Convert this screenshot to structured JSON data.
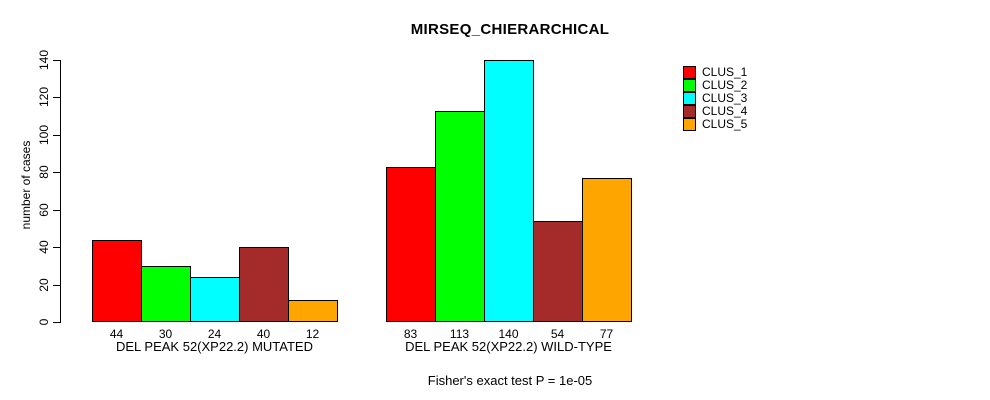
{
  "chart_data": {
    "type": "bar",
    "title": "MIRSEQ_CHIERARCHICAL",
    "ylabel": "number of cases",
    "xlabel": "",
    "ylim": [
      0,
      140
    ],
    "yticks": [
      0,
      20,
      40,
      60,
      80,
      100,
      120,
      140
    ],
    "grid": false,
    "legend_position": "right",
    "footer": "Fisher's exact test P = 1e-05",
    "series": [
      {
        "name": "CLUS_1",
        "color": "#FF0000"
      },
      {
        "name": "CLUS_2",
        "color": "#00FF00"
      },
      {
        "name": "CLUS_3",
        "color": "#00FFFF"
      },
      {
        "name": "CLUS_4",
        "color": "#A52A2A"
      },
      {
        "name": "CLUS_5",
        "color": "#FFA500"
      }
    ],
    "groups": [
      {
        "label": "DEL PEAK 52(XP22.2) MUTATED",
        "values": [
          44,
          30,
          24,
          40,
          12
        ]
      },
      {
        "label": "DEL PEAK 52(XP22.2) WILD-TYPE",
        "values": [
          83,
          113,
          140,
          54,
          77
        ]
      }
    ]
  }
}
